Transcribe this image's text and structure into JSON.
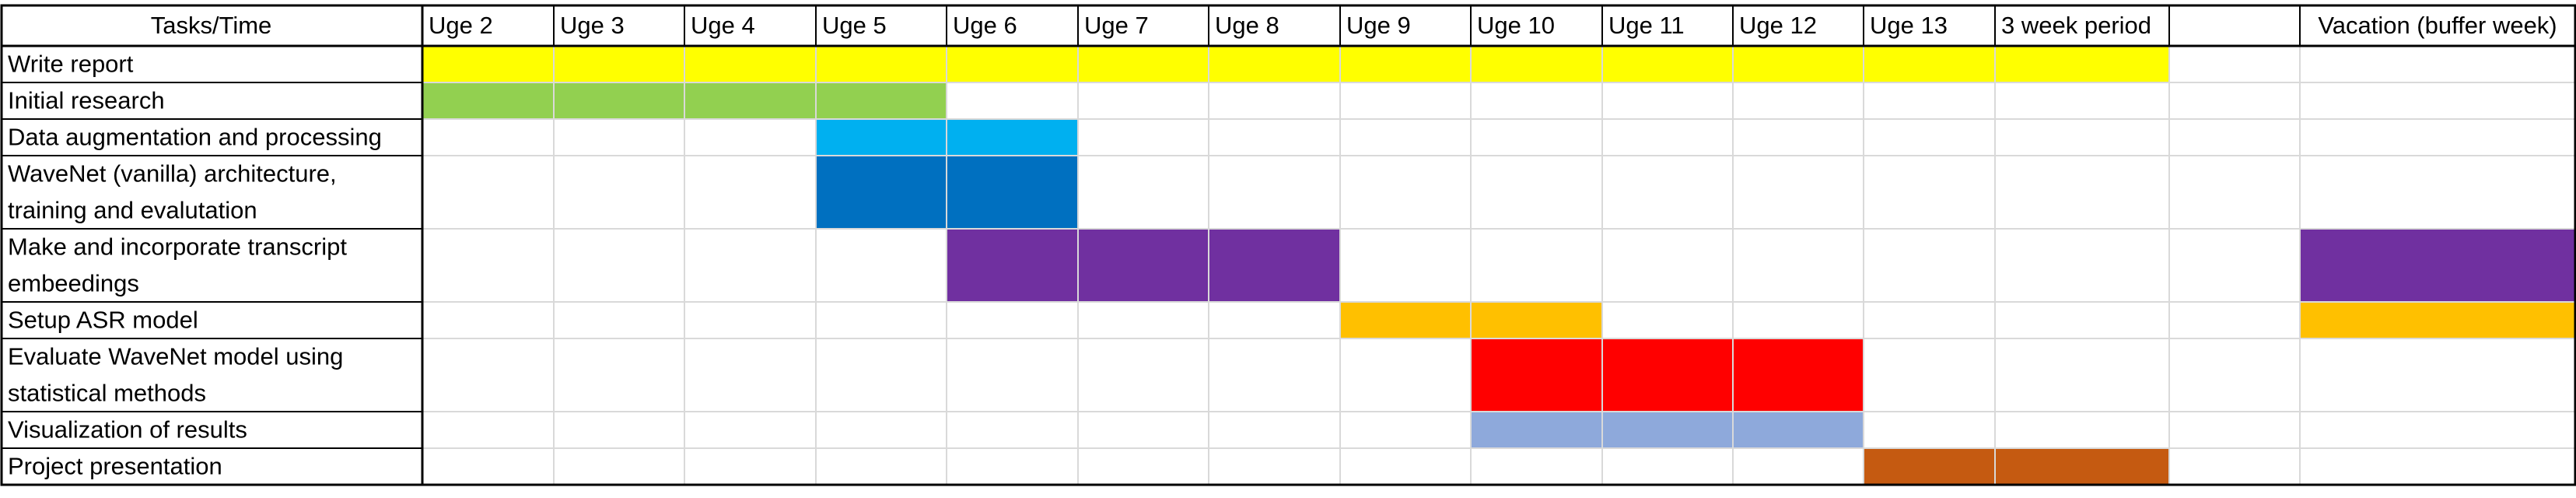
{
  "chart_data": {
    "type": "table",
    "header": {
      "task_column": "Tasks/Time",
      "columns": [
        "Uge 2",
        "Uge 3",
        "Uge 4",
        "Uge 5",
        "Uge 6",
        "Uge 7",
        "Uge 8",
        "Uge 9",
        "Uge 10",
        "Uge 11",
        "Uge 12",
        "Uge 13",
        "3 week period",
        "",
        "Vacation (buffer week)"
      ]
    },
    "tasks": [
      {
        "lines": [
          "Write report"
        ],
        "bars": [
          {
            "start": 0,
            "end": 13,
            "color": "#FFFF00"
          }
        ]
      },
      {
        "lines": [
          "Initial research"
        ],
        "bars": [
          {
            "start": 0,
            "end": 4,
            "color": "#92D050"
          }
        ]
      },
      {
        "lines": [
          "Data augmentation and processing"
        ],
        "bars": [
          {
            "start": 3,
            "end": 5,
            "color": "#00B0F0"
          }
        ]
      },
      {
        "lines": [
          "WaveNet (vanilla) architecture,",
          "training and evalutation"
        ],
        "bars": [
          {
            "start": 3,
            "end": 5,
            "color": "#0070C0"
          }
        ]
      },
      {
        "lines": [
          "Make and incorporate transcript",
          "embeedings"
        ],
        "bars": [
          {
            "start": 4,
            "end": 7,
            "color": "#7030A0"
          },
          {
            "start": 14,
            "end": 15,
            "color": "#7030A0"
          }
        ]
      },
      {
        "lines": [
          "Setup ASR model"
        ],
        "bars": [
          {
            "start": 7,
            "end": 9,
            "color": "#FFC000"
          },
          {
            "start": 14,
            "end": 15,
            "color": "#FFC000"
          }
        ]
      },
      {
        "lines": [
          "Evaluate WaveNet model using",
          "statistical methods"
        ],
        "bars": [
          {
            "start": 8,
            "end": 11,
            "color": "#FF0000"
          }
        ]
      },
      {
        "lines": [
          "Visualization of results"
        ],
        "bars": [
          {
            "start": 8,
            "end": 11,
            "color": "#8EA9DB"
          }
        ]
      },
      {
        "lines": [
          "Project presentation"
        ],
        "bars": [
          {
            "start": 11,
            "end": 13,
            "color": "#C55A11"
          }
        ]
      }
    ]
  }
}
